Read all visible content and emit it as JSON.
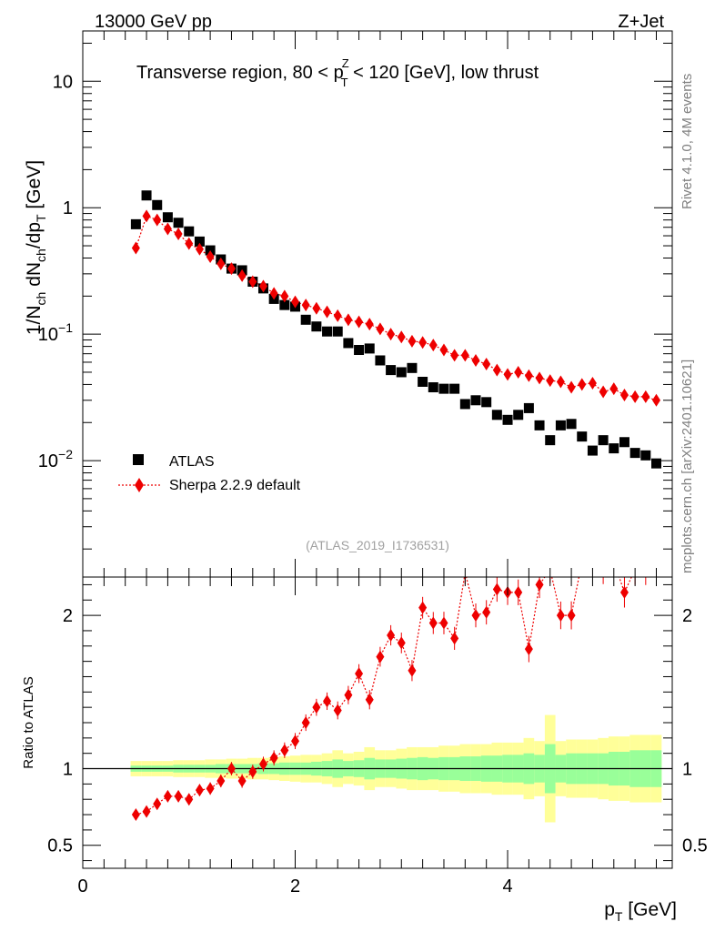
{
  "header": {
    "energy_label": "13000 GeV pp",
    "process_label": "Z+Jet",
    "title_pre": "Transverse region, 80 < p",
    "title_sup": "Z",
    "title_sub": "T",
    "title_post": " < 120 [GeV], low thrust"
  },
  "side_labels": {
    "rivet": "Rivet 4.1.0,  4M events",
    "mcplots": "mcplots.cern.ch [arXiv:2401.10621]"
  },
  "analysis_id": "(ATLAS_2019_I1736531)",
  "colors": {
    "data": "#000000",
    "mc": "#ee0000",
    "band_stat": "#99ff99",
    "band_total": "#ffff99"
  },
  "chart_data": [
    {
      "type": "scatter",
      "panel": "main",
      "yscale": "log",
      "ylabel_main": "1/N",
      "ylabel_subs": [
        "ch",
        "ch",
        "T"
      ],
      "ylabel_parts": [
        " dN",
        "/dp",
        " [GeV]"
      ],
      "xlim": [
        0,
        5.55
      ],
      "ylim": [
        0.0012,
        25
      ],
      "yticks": [
        {
          "value": 10,
          "label": "10"
        },
        {
          "value": 1,
          "label": "1"
        },
        {
          "value": 0.1,
          "label": "10",
          "sup": "−1"
        },
        {
          "value": 0.01,
          "label": "10",
          "sup": "−2"
        }
      ],
      "x": [
        0.5,
        0.6,
        0.7,
        0.8,
        0.9,
        1.0,
        1.1,
        1.2,
        1.3,
        1.4,
        1.5,
        1.6,
        1.7,
        1.8,
        1.9,
        2.0,
        2.1,
        2.2,
        2.3,
        2.4,
        2.5,
        2.6,
        2.7,
        2.8,
        2.9,
        3.0,
        3.1,
        3.2,
        3.3,
        3.4,
        3.5,
        3.6,
        3.7,
        3.8,
        3.9,
        4.0,
        4.1,
        4.2,
        4.3,
        4.4,
        4.5,
        4.6,
        4.7,
        4.8,
        4.9,
        5.0,
        5.1,
        5.2,
        5.3,
        5.4
      ],
      "series": [
        {
          "name": "ATLAS",
          "marker": "square",
          "values": [
            0.74,
            1.25,
            1.05,
            0.84,
            0.76,
            0.65,
            0.54,
            0.46,
            0.39,
            0.33,
            0.32,
            0.26,
            0.23,
            0.19,
            0.17,
            0.165,
            0.13,
            0.115,
            0.105,
            0.105,
            0.085,
            0.075,
            0.077,
            0.062,
            0.052,
            0.05,
            0.054,
            0.042,
            0.038,
            0.037,
            0.037,
            0.028,
            0.03,
            0.029,
            0.023,
            0.021,
            0.023,
            0.026,
            0.019,
            0.0145,
            0.019,
            0.0195,
            0.0155,
            0.012,
            0.0145,
            0.0125,
            0.014,
            0.0115,
            0.011,
            0.0095
          ]
        },
        {
          "name": "Sherpa 2.2.9 default",
          "marker": "diamond",
          "line": "dotted",
          "values": [
            0.48,
            0.86,
            0.8,
            0.68,
            0.62,
            0.52,
            0.47,
            0.41,
            0.36,
            0.33,
            0.29,
            0.26,
            0.24,
            0.21,
            0.2,
            0.18,
            0.17,
            0.16,
            0.15,
            0.14,
            0.13,
            0.125,
            0.12,
            0.11,
            0.1,
            0.095,
            0.088,
            0.086,
            0.082,
            0.075,
            0.068,
            0.068,
            0.062,
            0.058,
            0.052,
            0.048,
            0.05,
            0.047,
            0.045,
            0.043,
            0.042,
            0.038,
            0.04,
            0.041,
            0.035,
            0.037,
            0.033,
            0.032,
            0.032,
            0.03
          ]
        }
      ],
      "legend": {
        "position": "lower-left",
        "entries": [
          "ATLAS",
          "Sherpa 2.2.9 default"
        ]
      }
    },
    {
      "type": "scatter",
      "panel": "ratio",
      "ylabel": "Ratio to ATLAS",
      "xlabel_main": "p",
      "xlabel_sub": "T",
      "xlabel_unit": " [GeV]",
      "xlim": [
        0,
        5.55
      ],
      "ylim": [
        0.35,
        2.25
      ],
      "yticks": [
        {
          "value": 0.5,
          "label": "0.5"
        },
        {
          "value": 1,
          "label": "1"
        },
        {
          "value": 2,
          "label": "2"
        }
      ],
      "xticks": [
        {
          "value": 0,
          "label": "0"
        },
        {
          "value": 2,
          "label": "2"
        },
        {
          "value": 4,
          "label": "4"
        }
      ],
      "reference_line": 1,
      "x": [
        0.5,
        0.6,
        0.7,
        0.8,
        0.9,
        1.0,
        1.1,
        1.2,
        1.3,
        1.4,
        1.5,
        1.6,
        1.7,
        1.8,
        1.9,
        2.0,
        2.1,
        2.2,
        2.3,
        2.4,
        2.5,
        2.6,
        2.7,
        2.8,
        2.9,
        3.0,
        3.1,
        3.2,
        3.3,
        3.4,
        3.5,
        3.6,
        3.7,
        3.8,
        3.9,
        4.0,
        4.1,
        4.2,
        4.3,
        4.4,
        4.5,
        4.6,
        4.7,
        4.8,
        4.9,
        5.0,
        5.1,
        5.2,
        5.3,
        5.4
      ],
      "ratio": [
        0.7,
        0.72,
        0.77,
        0.82,
        0.82,
        0.8,
        0.86,
        0.87,
        0.92,
        1.0,
        0.92,
        0.98,
        1.03,
        1.07,
        1.12,
        1.18,
        1.3,
        1.4,
        1.44,
        1.38,
        1.48,
        1.62,
        1.45,
        1.73,
        1.87,
        1.82,
        1.64,
        2.05,
        1.95,
        1.95,
        1.85,
        2.28,
        2.0,
        2.02,
        2.17,
        2.15,
        2.15,
        1.78,
        2.2,
        2.3,
        2.0,
        2.0,
        2.35,
        2.35,
        2.3,
        2.35,
        2.15,
        2.3,
        2.3,
        2.35
      ],
      "stat_band": [
        0.02,
        0.02,
        0.02,
        0.02,
        0.025,
        0.025,
        0.025,
        0.025,
        0.03,
        0.03,
        0.03,
        0.03,
        0.035,
        0.035,
        0.04,
        0.04,
        0.04,
        0.045,
        0.05,
        0.06,
        0.05,
        0.055,
        0.07,
        0.06,
        0.06,
        0.065,
        0.07,
        0.075,
        0.07,
        0.075,
        0.075,
        0.08,
        0.08,
        0.085,
        0.085,
        0.09,
        0.09,
        0.1,
        0.09,
        0.16,
        0.09,
        0.1,
        0.1,
        0.1,
        0.1,
        0.11,
        0.11,
        0.12,
        0.12,
        0.12
      ],
      "total_band": [
        0.05,
        0.05,
        0.05,
        0.05,
        0.055,
        0.055,
        0.055,
        0.06,
        0.06,
        0.065,
        0.065,
        0.07,
        0.07,
        0.075,
        0.08,
        0.085,
        0.09,
        0.09,
        0.1,
        0.12,
        0.1,
        0.11,
        0.14,
        0.12,
        0.12,
        0.13,
        0.14,
        0.14,
        0.14,
        0.15,
        0.15,
        0.16,
        0.16,
        0.16,
        0.17,
        0.17,
        0.17,
        0.2,
        0.18,
        0.35,
        0.18,
        0.19,
        0.19,
        0.19,
        0.2,
        0.21,
        0.21,
        0.22,
        0.22,
        0.22
      ]
    }
  ]
}
